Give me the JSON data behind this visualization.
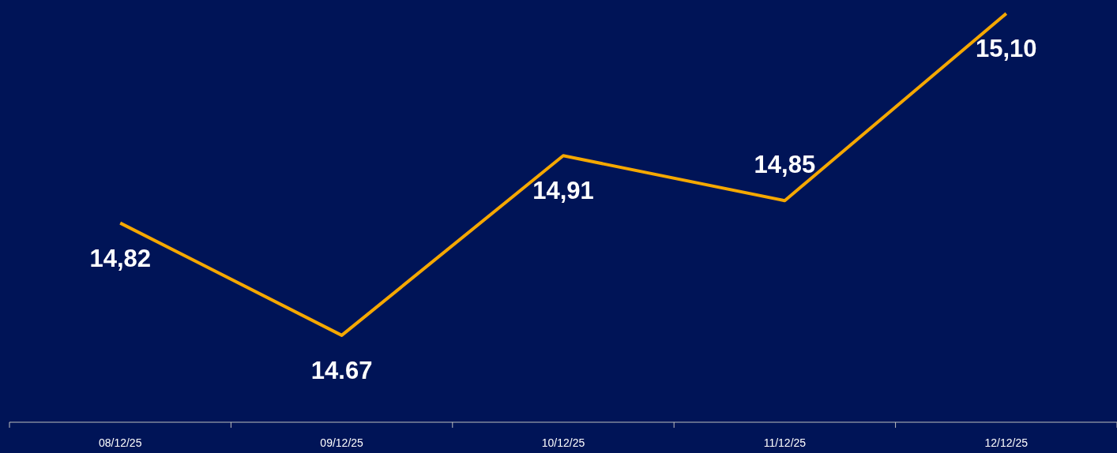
{
  "chart_data": {
    "type": "line",
    "categories": [
      "08/12/25",
      "09/12/25",
      "10/12/25",
      "11/12/25",
      "12/12/25"
    ],
    "series": [
      {
        "color": "#f5a800",
        "values": [
          14.82,
          14.67,
          14.91,
          14.85,
          15.1
        ],
        "value_labels": [
          "14,82",
          "14.67",
          "14,91",
          "14,85",
          "15,10"
        ]
      }
    ],
    "marker": "none",
    "line_style": "solid"
  }
}
